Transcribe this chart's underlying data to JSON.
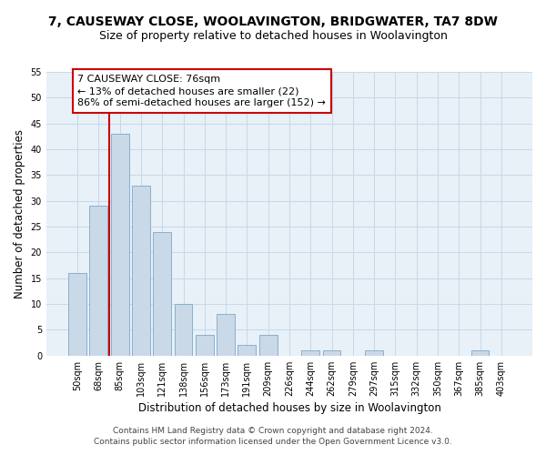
{
  "title": "7, CAUSEWAY CLOSE, WOOLAVINGTON, BRIDGWATER, TA7 8DW",
  "subtitle": "Size of property relative to detached houses in Woolavington",
  "xlabel": "Distribution of detached houses by size in Woolavington",
  "ylabel": "Number of detached properties",
  "categories": [
    "50sqm",
    "68sqm",
    "85sqm",
    "103sqm",
    "121sqm",
    "138sqm",
    "156sqm",
    "173sqm",
    "191sqm",
    "209sqm",
    "226sqm",
    "244sqm",
    "262sqm",
    "279sqm",
    "297sqm",
    "315sqm",
    "332sqm",
    "350sqm",
    "367sqm",
    "385sqm",
    "403sqm"
  ],
  "values": [
    16,
    29,
    43,
    33,
    24,
    10,
    4,
    8,
    2,
    4,
    0,
    1,
    1,
    0,
    1,
    0,
    0,
    0,
    0,
    1,
    0
  ],
  "bar_color": "#c9d9e8",
  "bar_edge_color": "#8ab0cc",
  "vline_x": 1.5,
  "vline_color": "#cc0000",
  "annotation_text": "7 CAUSEWAY CLOSE: 76sqm\n← 13% of detached houses are smaller (22)\n86% of semi-detached houses are larger (152) →",
  "annotation_box_color": "#ffffff",
  "annotation_box_edge": "#cc0000",
  "ylim": [
    0,
    55
  ],
  "yticks": [
    0,
    5,
    10,
    15,
    20,
    25,
    30,
    35,
    40,
    45,
    50,
    55
  ],
  "grid_color": "#c8d8e8",
  "background_color": "#e8f0f8",
  "footer_line1": "Contains HM Land Registry data © Crown copyright and database right 2024.",
  "footer_line2": "Contains public sector information licensed under the Open Government Licence v3.0.",
  "title_fontsize": 10,
  "subtitle_fontsize": 9,
  "xlabel_fontsize": 8.5,
  "ylabel_fontsize": 8.5,
  "tick_fontsize": 7,
  "annotation_fontsize": 8,
  "footer_fontsize": 6.5
}
